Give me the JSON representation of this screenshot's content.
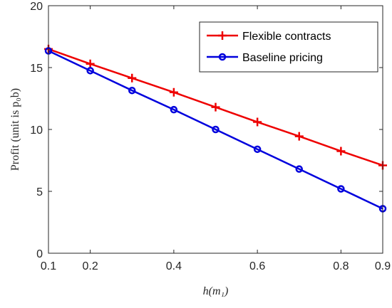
{
  "chart_data": {
    "type": "line",
    "title": "",
    "xlabel": "h(m₁)",
    "ylabel": "Profit (unit is p₀b)",
    "xlim": [
      0.1,
      0.9
    ],
    "ylim": [
      0,
      20
    ],
    "xticks": [
      0.1,
      0.2,
      0.4,
      0.6,
      0.8,
      0.9
    ],
    "xtick_labels": [
      "0.1",
      "0.2",
      "0.4",
      "0.6",
      "0.8",
      "0.9"
    ],
    "yticks": [
      0,
      5,
      10,
      15,
      20
    ],
    "ytick_labels": [
      "0",
      "5",
      "10",
      "15",
      "20"
    ],
    "grid": false,
    "legend_position": "top-right",
    "x": [
      0.1,
      0.2,
      0.3,
      0.4,
      0.5,
      0.6,
      0.7,
      0.8,
      0.9
    ],
    "series": [
      {
        "name": "Flexible contracts",
        "color": "#ee0000",
        "marker": "plus",
        "values": [
          16.5,
          15.3,
          14.15,
          13.0,
          11.8,
          10.6,
          9.45,
          8.25,
          7.1
        ]
      },
      {
        "name": "Baseline pricing",
        "color": "#0000dd",
        "marker": "circle",
        "values": [
          16.35,
          14.75,
          13.15,
          11.6,
          10.0,
          8.4,
          6.8,
          5.2,
          3.6
        ]
      }
    ]
  }
}
